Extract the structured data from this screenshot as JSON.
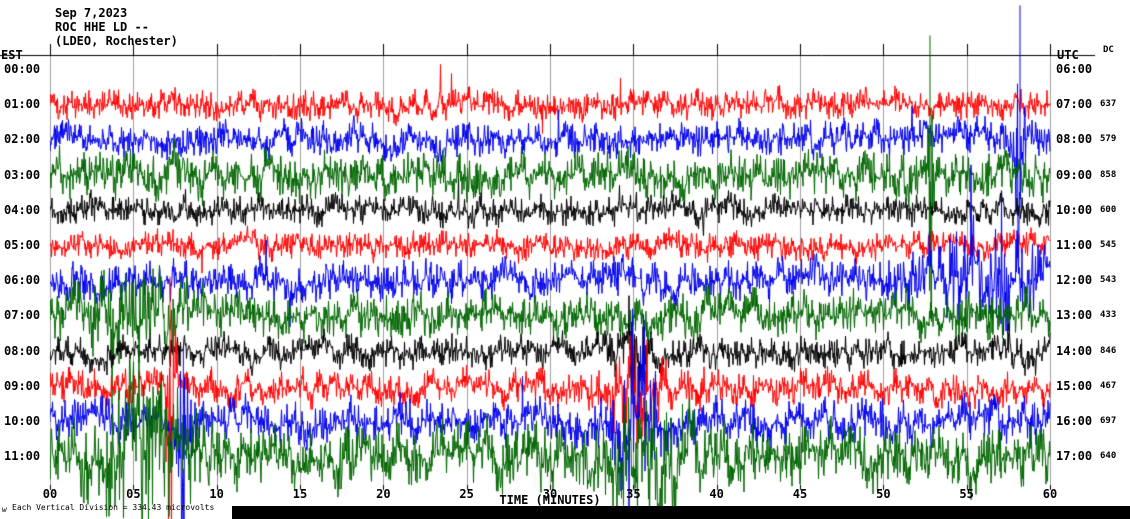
{
  "header": {
    "date": "Sep 7,2023",
    "station": "ROC HHE LD --",
    "location": "(LDEO, Rochester)"
  },
  "axes": {
    "left_label": "EST",
    "right_label": "UTC",
    "dc_label": "DC",
    "x_label": "TIME (MINUTES)",
    "x_ticks": [
      "00",
      "05",
      "10",
      "15",
      "20",
      "25",
      "30",
      "35",
      "40",
      "45",
      "50",
      "55",
      "60"
    ]
  },
  "footer": {
    "scale_note": "Each Vertical Division =  334.43 microvolts",
    "logo_mark": "w"
  },
  "colors": {
    "red": "#ff0000",
    "blue": "#0000ee",
    "green": "#006600",
    "black": "#000000",
    "grid": "#a0a0a0",
    "frame": "#000000"
  },
  "chart_data": {
    "type": "line",
    "subtype": "helicorder-seismogram",
    "station": "ROC HHE LD",
    "date": "Sep 7,2023",
    "x_range_minutes": [
      0,
      60
    ],
    "minutes_per_row": 60,
    "rows": [
      {
        "est": "00:00",
        "utc": "06:00",
        "dc": "",
        "color": "none",
        "amplitude": 0
      },
      {
        "est": "01:00",
        "utc": "07:00",
        "dc": 637,
        "color": "red",
        "amplitude": 13
      },
      {
        "est": "02:00",
        "utc": "08:00",
        "dc": 579,
        "color": "blue",
        "amplitude": 15
      },
      {
        "est": "03:00",
        "utc": "09:00",
        "dc": 858,
        "color": "green",
        "amplitude": 20
      },
      {
        "est": "04:00",
        "utc": "10:00",
        "dc": 600,
        "color": "black",
        "amplitude": 13
      },
      {
        "est": "05:00",
        "utc": "11:00",
        "dc": 545,
        "color": "red",
        "amplitude": 12
      },
      {
        "est": "06:00",
        "utc": "12:00",
        "dc": 543,
        "color": "blue",
        "amplitude": 17
      },
      {
        "est": "07:00",
        "utc": "13:00",
        "dc": 433,
        "color": "green",
        "amplitude": 19
      },
      {
        "est": "08:00",
        "utc": "14:00",
        "dc": 846,
        "color": "black",
        "amplitude": 14
      },
      {
        "est": "09:00",
        "utc": "15:00",
        "dc": 467,
        "color": "red",
        "amplitude": 15
      },
      {
        "est": "10:00",
        "utc": "16:00",
        "dc": 697,
        "color": "blue",
        "amplitude": 19
      },
      {
        "est": "11:00",
        "utc": "17:00",
        "dc": 640,
        "color": "green",
        "amplitude": 26
      }
    ],
    "events": [
      {
        "row": 2,
        "minute": 58.2,
        "amplitude": 135,
        "width": 0.2
      },
      {
        "row": 3,
        "minute": 52.8,
        "amplitude": 140,
        "width": 0.15
      },
      {
        "row": 9,
        "minute": 7.2,
        "amplitude": 110,
        "width": 0.3
      },
      {
        "row": 10,
        "minute": 8.0,
        "amplitude": 75,
        "width": 0.4
      },
      {
        "row": 11,
        "minute": 6.0,
        "amplitude": 45,
        "width": 3.0
      },
      {
        "row": 7,
        "minute": 5.0,
        "amplitude": 25,
        "width": 3.0
      },
      {
        "row": 8,
        "minute": 35.0,
        "amplitude": 25,
        "width": 1.0
      },
      {
        "row": 9,
        "minute": 35.0,
        "amplitude": 45,
        "width": 1.5
      },
      {
        "row": 10,
        "minute": 35.2,
        "amplitude": 80,
        "width": 1.2
      },
      {
        "row": 11,
        "minute": 36.0,
        "amplitude": 40,
        "width": 2.5
      },
      {
        "row": 6,
        "minute": 56.0,
        "amplitude": 30,
        "width": 4.0
      }
    ]
  }
}
